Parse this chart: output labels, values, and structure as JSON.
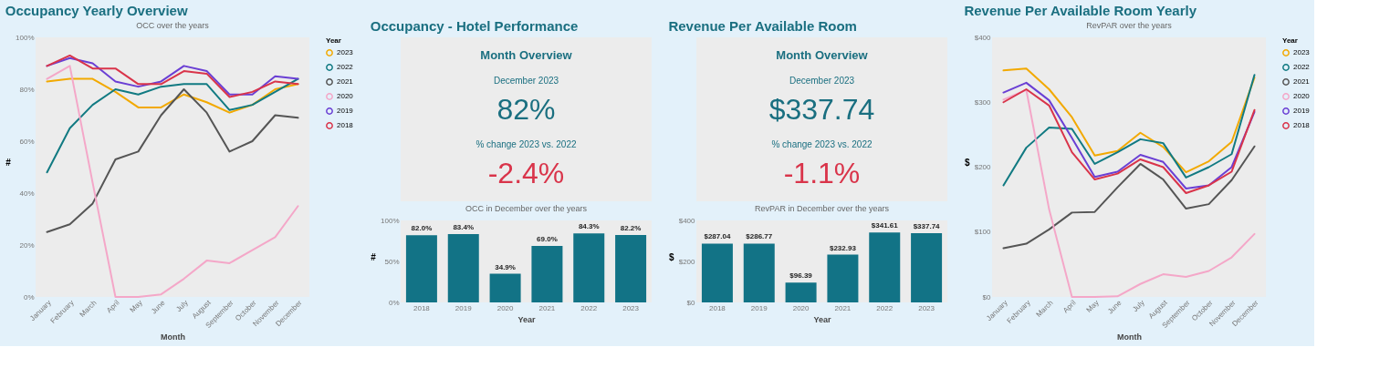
{
  "chart_data": [
    {
      "type": "line",
      "title": "Occupancy Yearly Overview",
      "subtitle": "OCC over the years",
      "xlabel": "Month",
      "ylabel": "#",
      "legend": "right",
      "legend_title": "Year",
      "categories": [
        "January",
        "February",
        "March",
        "April",
        "May",
        "June",
        "July",
        "August",
        "September",
        "October",
        "November",
        "December"
      ],
      "ylim": [
        0,
        100
      ],
      "yticks": [
        {
          "value": 0,
          "label": "0%"
        },
        {
          "value": 20,
          "label": "20%"
        },
        {
          "value": 40,
          "label": "40%"
        },
        {
          "value": 60,
          "label": "60%"
        },
        {
          "value": 80,
          "label": "80%"
        },
        {
          "value": 100,
          "label": "100%"
        }
      ],
      "series": [
        {
          "name": "2023",
          "color": "#f2a900",
          "values": [
            83,
            84,
            84,
            79,
            73,
            73,
            78,
            75,
            71,
            74,
            80,
            82
          ]
        },
        {
          "name": "2022",
          "color": "#117a82",
          "values": [
            48,
            65,
            74,
            80,
            78,
            81,
            82,
            82,
            72,
            74,
            79,
            84
          ]
        },
        {
          "name": "2021",
          "color": "#555555",
          "values": [
            25,
            28,
            36,
            53,
            56,
            70,
            80,
            71,
            56,
            60,
            70,
            69
          ]
        },
        {
          "name": "2020",
          "color": "#f4a7c8",
          "values": [
            84,
            89,
            44,
            0,
            0,
            1,
            7,
            14,
            13,
            18,
            23,
            35
          ]
        },
        {
          "name": "2019",
          "color": "#6a3fd4",
          "values": [
            89,
            92,
            90,
            83,
            81,
            83,
            89,
            87,
            78,
            78,
            85,
            84
          ]
        },
        {
          "name": "2018",
          "color": "#d9344a",
          "values": [
            89,
            93,
            88,
            88,
            82,
            82,
            87,
            86,
            77,
            79,
            83,
            82
          ]
        }
      ]
    },
    {
      "type": "bar",
      "title": "Occupancy - Hotel Performance",
      "subtitle": "OCC in December over the years",
      "xlabel": "Year",
      "ylabel": "#",
      "annotations": [
        "Month Overview",
        "December 2023",
        "82%",
        "% change 2023 vs. 2022",
        "-2.4%"
      ],
      "categories": [
        "2018",
        "2019",
        "2020",
        "2021",
        "2022",
        "2023"
      ],
      "color": "#127386",
      "values": [
        82.0,
        83.4,
        34.9,
        69.0,
        84.3,
        82.2
      ],
      "value_labels": [
        "82.0%",
        "83.4%",
        "34.9%",
        "69.0%",
        "84.3%",
        "82.2%"
      ],
      "ylim": [
        0,
        100
      ],
      "yticks": [
        {
          "value": 0,
          "label": "0%"
        },
        {
          "value": 50,
          "label": "50%"
        },
        {
          "value": 100,
          "label": "100%"
        }
      ]
    },
    {
      "type": "bar",
      "title": "Revenue Per Available Room",
      "subtitle": "RevPAR in December over the years",
      "xlabel": "Year",
      "ylabel": "$",
      "annotations": [
        "Month Overview",
        "December 2023",
        "$337.74",
        "% change 2023 vs. 2022",
        "-1.1%"
      ],
      "categories": [
        "2018",
        "2019",
        "2020",
        "2021",
        "2022",
        "2023"
      ],
      "color": "#127386",
      "values": [
        287.04,
        286.77,
        96.39,
        232.93,
        341.61,
        337.74
      ],
      "value_labels": [
        "$287.04",
        "$286.77",
        "$96.39",
        "$232.93",
        "$341.61",
        "$337.74"
      ],
      "ylim": [
        0,
        400
      ],
      "yticks": [
        {
          "value": 0,
          "label": "$0"
        },
        {
          "value": 200,
          "label": "$200"
        },
        {
          "value": 400,
          "label": "$400"
        }
      ]
    },
    {
      "type": "line",
      "title": "Revenue Per Available Room Yearly",
      "subtitle": "RevPAR over the years",
      "xlabel": "Month",
      "ylabel": "$",
      "legend": "right",
      "legend_title": "Year",
      "categories": [
        "January",
        "February",
        "March",
        "April",
        "May",
        "June",
        "July",
        "August",
        "September",
        "October",
        "November",
        "December"
      ],
      "ylim": [
        0,
        400
      ],
      "yticks": [
        {
          "value": 0,
          "label": "$0"
        },
        {
          "value": 100,
          "label": "$100"
        },
        {
          "value": 200,
          "label": "$200"
        },
        {
          "value": 300,
          "label": "$300"
        },
        {
          "value": 400,
          "label": "$400"
        }
      ],
      "series": [
        {
          "name": "2023",
          "color": "#f2a900",
          "values": [
            349,
            352,
            320,
            277,
            218,
            225,
            253,
            231,
            192,
            209,
            239,
            338
          ]
        },
        {
          "name": "2022",
          "color": "#117a82",
          "values": [
            172,
            230,
            261,
            259,
            205,
            223,
            243,
            237,
            184,
            200,
            220,
            342
          ]
        },
        {
          "name": "2021",
          "color": "#555555",
          "values": [
            75,
            82,
            104,
            130,
            131,
            169,
            205,
            181,
            136,
            143,
            180,
            232
          ]
        },
        {
          "name": "2020",
          "color": "#f4a7c8",
          "values": [
            304,
            319,
            135,
            0,
            0,
            1,
            20,
            35,
            31,
            40,
            61,
            97
          ]
        },
        {
          "name": "2019",
          "color": "#6a3fd4",
          "values": [
            315,
            330,
            303,
            245,
            185,
            193,
            219,
            208,
            167,
            172,
            200,
            285
          ]
        },
        {
          "name": "2018",
          "color": "#d9344a",
          "values": [
            300,
            320,
            295,
            223,
            181,
            190,
            212,
            200,
            160,
            172,
            193,
            288
          ]
        }
      ]
    }
  ]
}
